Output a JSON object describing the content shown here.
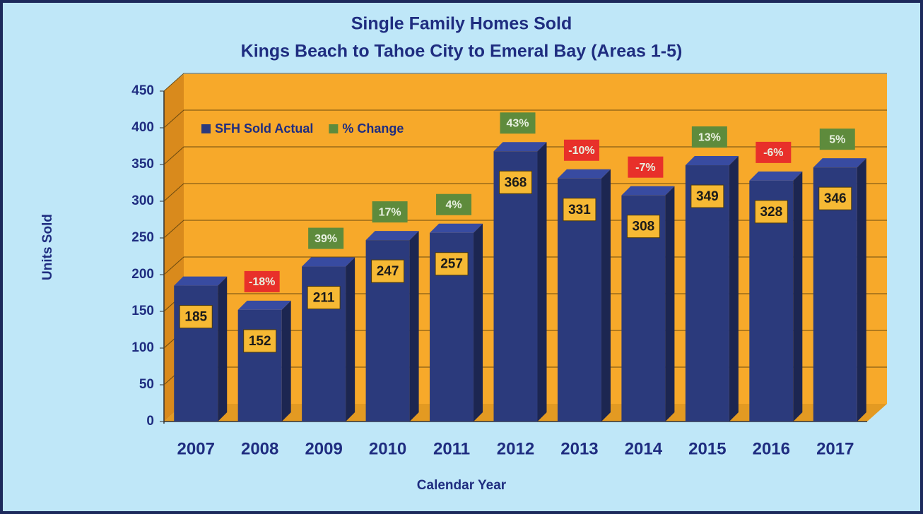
{
  "chart_data": {
    "type": "bar",
    "title": "Single Family Homes Sold",
    "subtitle": "Kings Beach to Tahoe City to Emeral Bay (Areas 1-5)",
    "x_label": "Calendar Year",
    "y_label": "Units Sold",
    "categories": [
      "2007",
      "2008",
      "2009",
      "2010",
      "2011",
      "2012",
      "2013",
      "2014",
      "2015",
      "2016",
      "2017"
    ],
    "series": [
      {
        "name": "SFH Sold Actual",
        "color": "#2b3a7c",
        "values": [
          185,
          152,
          211,
          247,
          257,
          368,
          331,
          308,
          349,
          328,
          346
        ]
      },
      {
        "name": "% Change",
        "color": "#5e8b3c",
        "negative_color": "#e8302a",
        "values": [
          null,
          -18,
          39,
          17,
          4,
          43,
          -10,
          -7,
          13,
          -6,
          5
        ],
        "value_labels": [
          null,
          "-18%",
          "39%",
          "17%",
          "4%",
          "43%",
          "-10%",
          "-7%",
          "13%",
          "-6%",
          "5%"
        ]
      }
    ],
    "ylim": [
      0,
      450
    ],
    "yticks": [
      0,
      50,
      100,
      150,
      200,
      250,
      300,
      350,
      400,
      450
    ],
    "grid": true,
    "legend": "upper left"
  }
}
